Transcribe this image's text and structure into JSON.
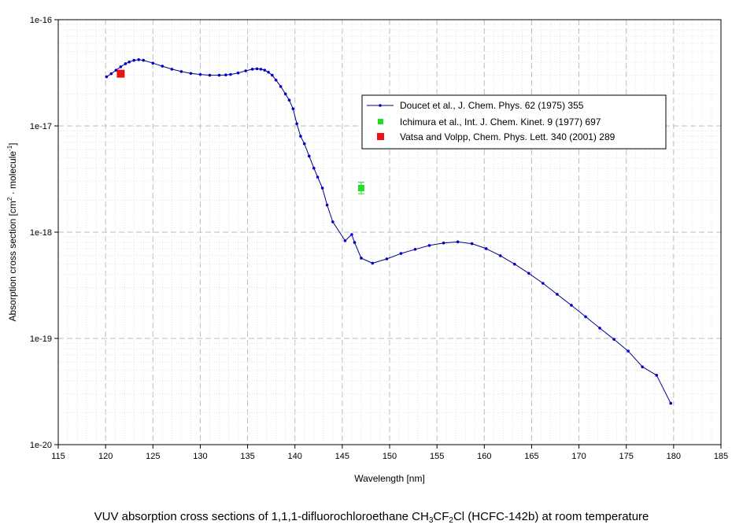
{
  "chart_data": {
    "type": "scatter",
    "xlabel": "Wavelength [nm]",
    "ylabel_parts": {
      "prefix": "Absorption cross section [cm",
      "sup1": "2",
      "middle": " · molecule",
      "sup2": "-1",
      "suffix": "]"
    },
    "xlim": [
      115,
      185
    ],
    "ylim": [
      1e-20,
      1e-16
    ],
    "yscale": "log",
    "x_ticks": [
      115,
      120,
      125,
      130,
      135,
      140,
      145,
      150,
      155,
      160,
      165,
      170,
      175,
      180,
      185
    ],
    "y_ticks": [
      "1e-20",
      "1e-19",
      "1e-18",
      "1e-17",
      "1e-16"
    ],
    "grid": true,
    "legend_position": "right, upper-middle",
    "series": [
      {
        "name": "Doucet et al., J. Chem. Phys. 62 (1975) 355",
        "color": "#00008b",
        "marker": "dot",
        "line": true,
        "x": [
          120.1,
          120.6,
          121.1,
          121.6,
          122.1,
          122.5,
          123.0,
          123.5,
          124.0,
          125.0,
          126.0,
          127.0,
          128.0,
          129.0,
          130.0,
          131.0,
          132.0,
          132.7,
          133.2,
          134.0,
          134.8,
          135.5,
          136.0,
          136.4,
          136.8,
          137.2,
          137.6,
          138.0,
          138.5,
          139.0,
          139.4,
          139.8,
          140.2,
          140.6,
          141.0,
          141.5,
          142.0,
          142.4,
          142.9,
          143.4,
          144.0,
          145.3,
          146.0,
          146.3,
          147.0,
          148.2,
          149.7,
          151.2,
          152.7,
          154.2,
          155.7,
          157.2,
          158.7,
          160.2,
          161.7,
          163.2,
          164.7,
          166.2,
          167.7,
          169.2,
          170.7,
          172.2,
          173.7,
          175.2,
          176.7,
          178.2,
          179.7
        ],
        "y": [
          2.9e-17,
          3.1e-17,
          3.35e-17,
          3.6e-17,
          3.85e-17,
          4e-17,
          4.15e-17,
          4.2e-17,
          4.15e-17,
          3.9e-17,
          3.65e-17,
          3.42e-17,
          3.25e-17,
          3.12e-17,
          3.05e-17,
          3e-17,
          3e-17,
          3.02e-17,
          3.05e-17,
          3.15e-17,
          3.3e-17,
          3.42e-17,
          3.45e-17,
          3.42e-17,
          3.35e-17,
          3.2e-17,
          3e-17,
          2.7e-17,
          2.35e-17,
          2e-17,
          1.75e-17,
          1.45e-17,
          1.05e-17,
          8e-18,
          6.8e-18,
          5.2e-18,
          4e-18,
          3.3e-18,
          2.6e-18,
          1.8e-18,
          1.25e-18,
          8.3e-19,
          9.5e-19,
          8e-19,
          5.7e-19,
          5.1e-19,
          5.6e-19,
          6.3e-19,
          6.9e-19,
          7.5e-19,
          7.9e-19,
          8.1e-19,
          7.8e-19,
          7e-19,
          6e-19,
          5e-19,
          4.1e-19,
          3.3e-19,
          2.6e-19,
          2.05e-19,
          1.6e-19,
          1.25e-19,
          9.8e-20,
          7.6e-20,
          5.4e-20,
          4.5e-20,
          2.45e-20
        ]
      },
      {
        "name": "Ichimura et al., Int. J. Chem. Kinet. 9 (1977) 697",
        "color": "#22dd22",
        "marker": "square",
        "line": false,
        "x": [
          147.0
        ],
        "y": [
          2.6e-18
        ],
        "yerr_low": [
          2.3e-18
        ],
        "yerr_high": [
          2.95e-18
        ]
      },
      {
        "name": "Vatsa and Volpp, Chem. Phys. Lett. 340 (2001) 289",
        "color": "#ee1111",
        "marker": "square",
        "line": false,
        "x": [
          121.6
        ],
        "y": [
          3.1e-17
        ]
      }
    ]
  },
  "caption": {
    "t1": "VUV absorption cross sections of 1,1,1-difluorochloroethane CH",
    "s1": "3",
    "t2": "CF",
    "s2": "2",
    "t3": "Cl (HCFC-142b) at room temperature"
  }
}
